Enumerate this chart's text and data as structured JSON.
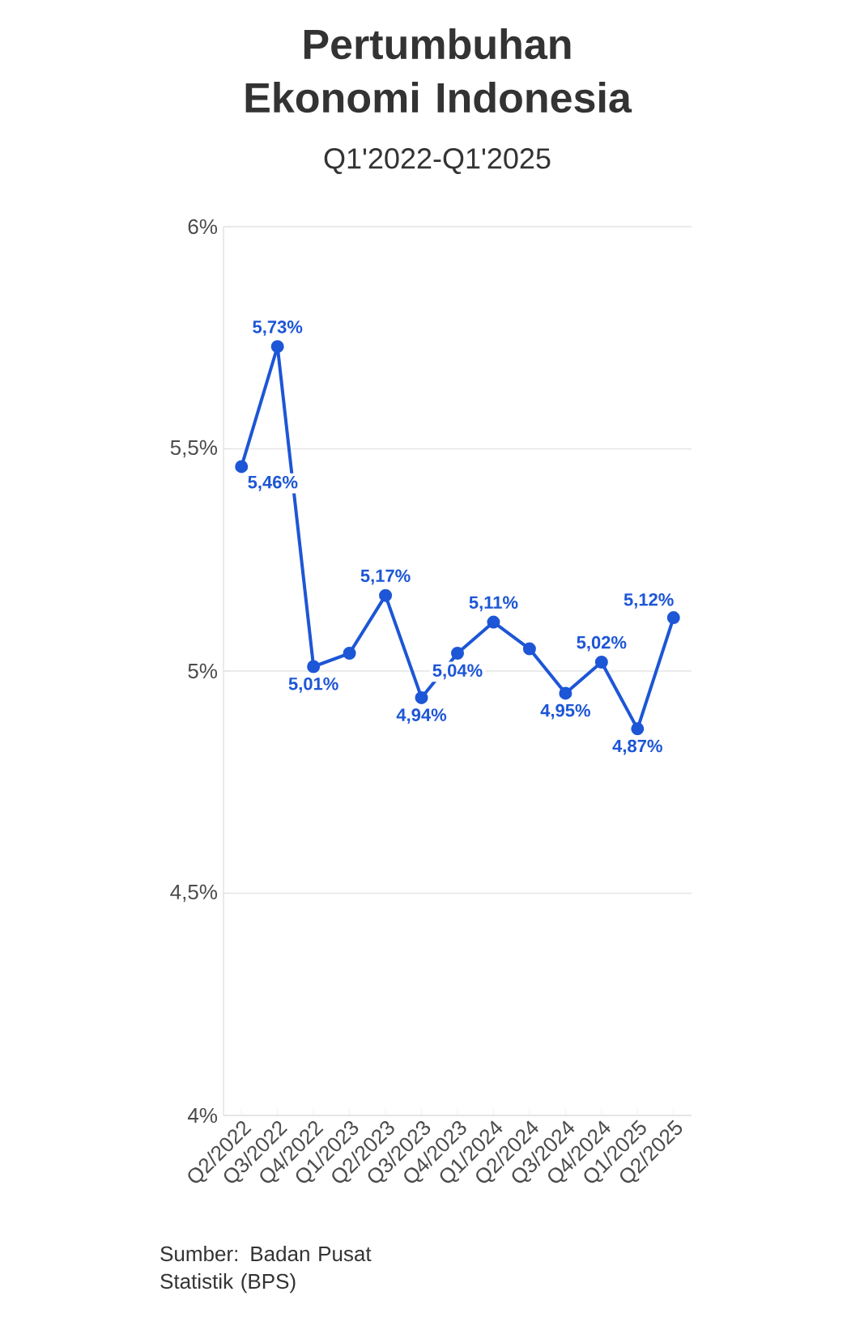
{
  "chart_data": {
    "type": "line",
    "title": "Pertumbuhan Ekonomi Indonesia",
    "subtitle": "Q1'2022-Q1'2025",
    "categories": [
      "Q2/2022",
      "Q3/2022",
      "Q4/2022",
      "Q1/2023",
      "Q2/2023",
      "Q3/2023",
      "Q4/2023",
      "Q1/2024",
      "Q2/2024",
      "Q3/2024",
      "Q4/2024",
      "Q1/2025",
      "Q2/2025"
    ],
    "values": [
      5.46,
      5.73,
      5.01,
      5.04,
      5.17,
      4.94,
      5.04,
      5.11,
      5.05,
      4.95,
      5.02,
      4.87,
      5.12
    ],
    "value_labels": [
      "5,46%",
      "5,73%",
      "5,01%",
      null,
      "5,17%",
      "4,94%",
      "5,04%",
      "5,11%",
      null,
      "4,95%",
      "5,02%",
      "4,87%",
      "5,12%"
    ],
    "color": "#1d56d6",
    "marker": "circle",
    "line_style": "solid",
    "grid": "y",
    "ylim": [
      4,
      6
    ],
    "yticks": [
      {
        "value": 4,
        "label": "4%"
      },
      {
        "value": 4.5,
        "label": "4,5%"
      },
      {
        "value": 5,
        "label": "5%"
      },
      {
        "value": 5.5,
        "label": "5,5%"
      },
      {
        "value": 6,
        "label": "6%"
      }
    ],
    "annotations": [
      "Sumber: Badan Pusat Statistik (BPS)"
    ]
  }
}
